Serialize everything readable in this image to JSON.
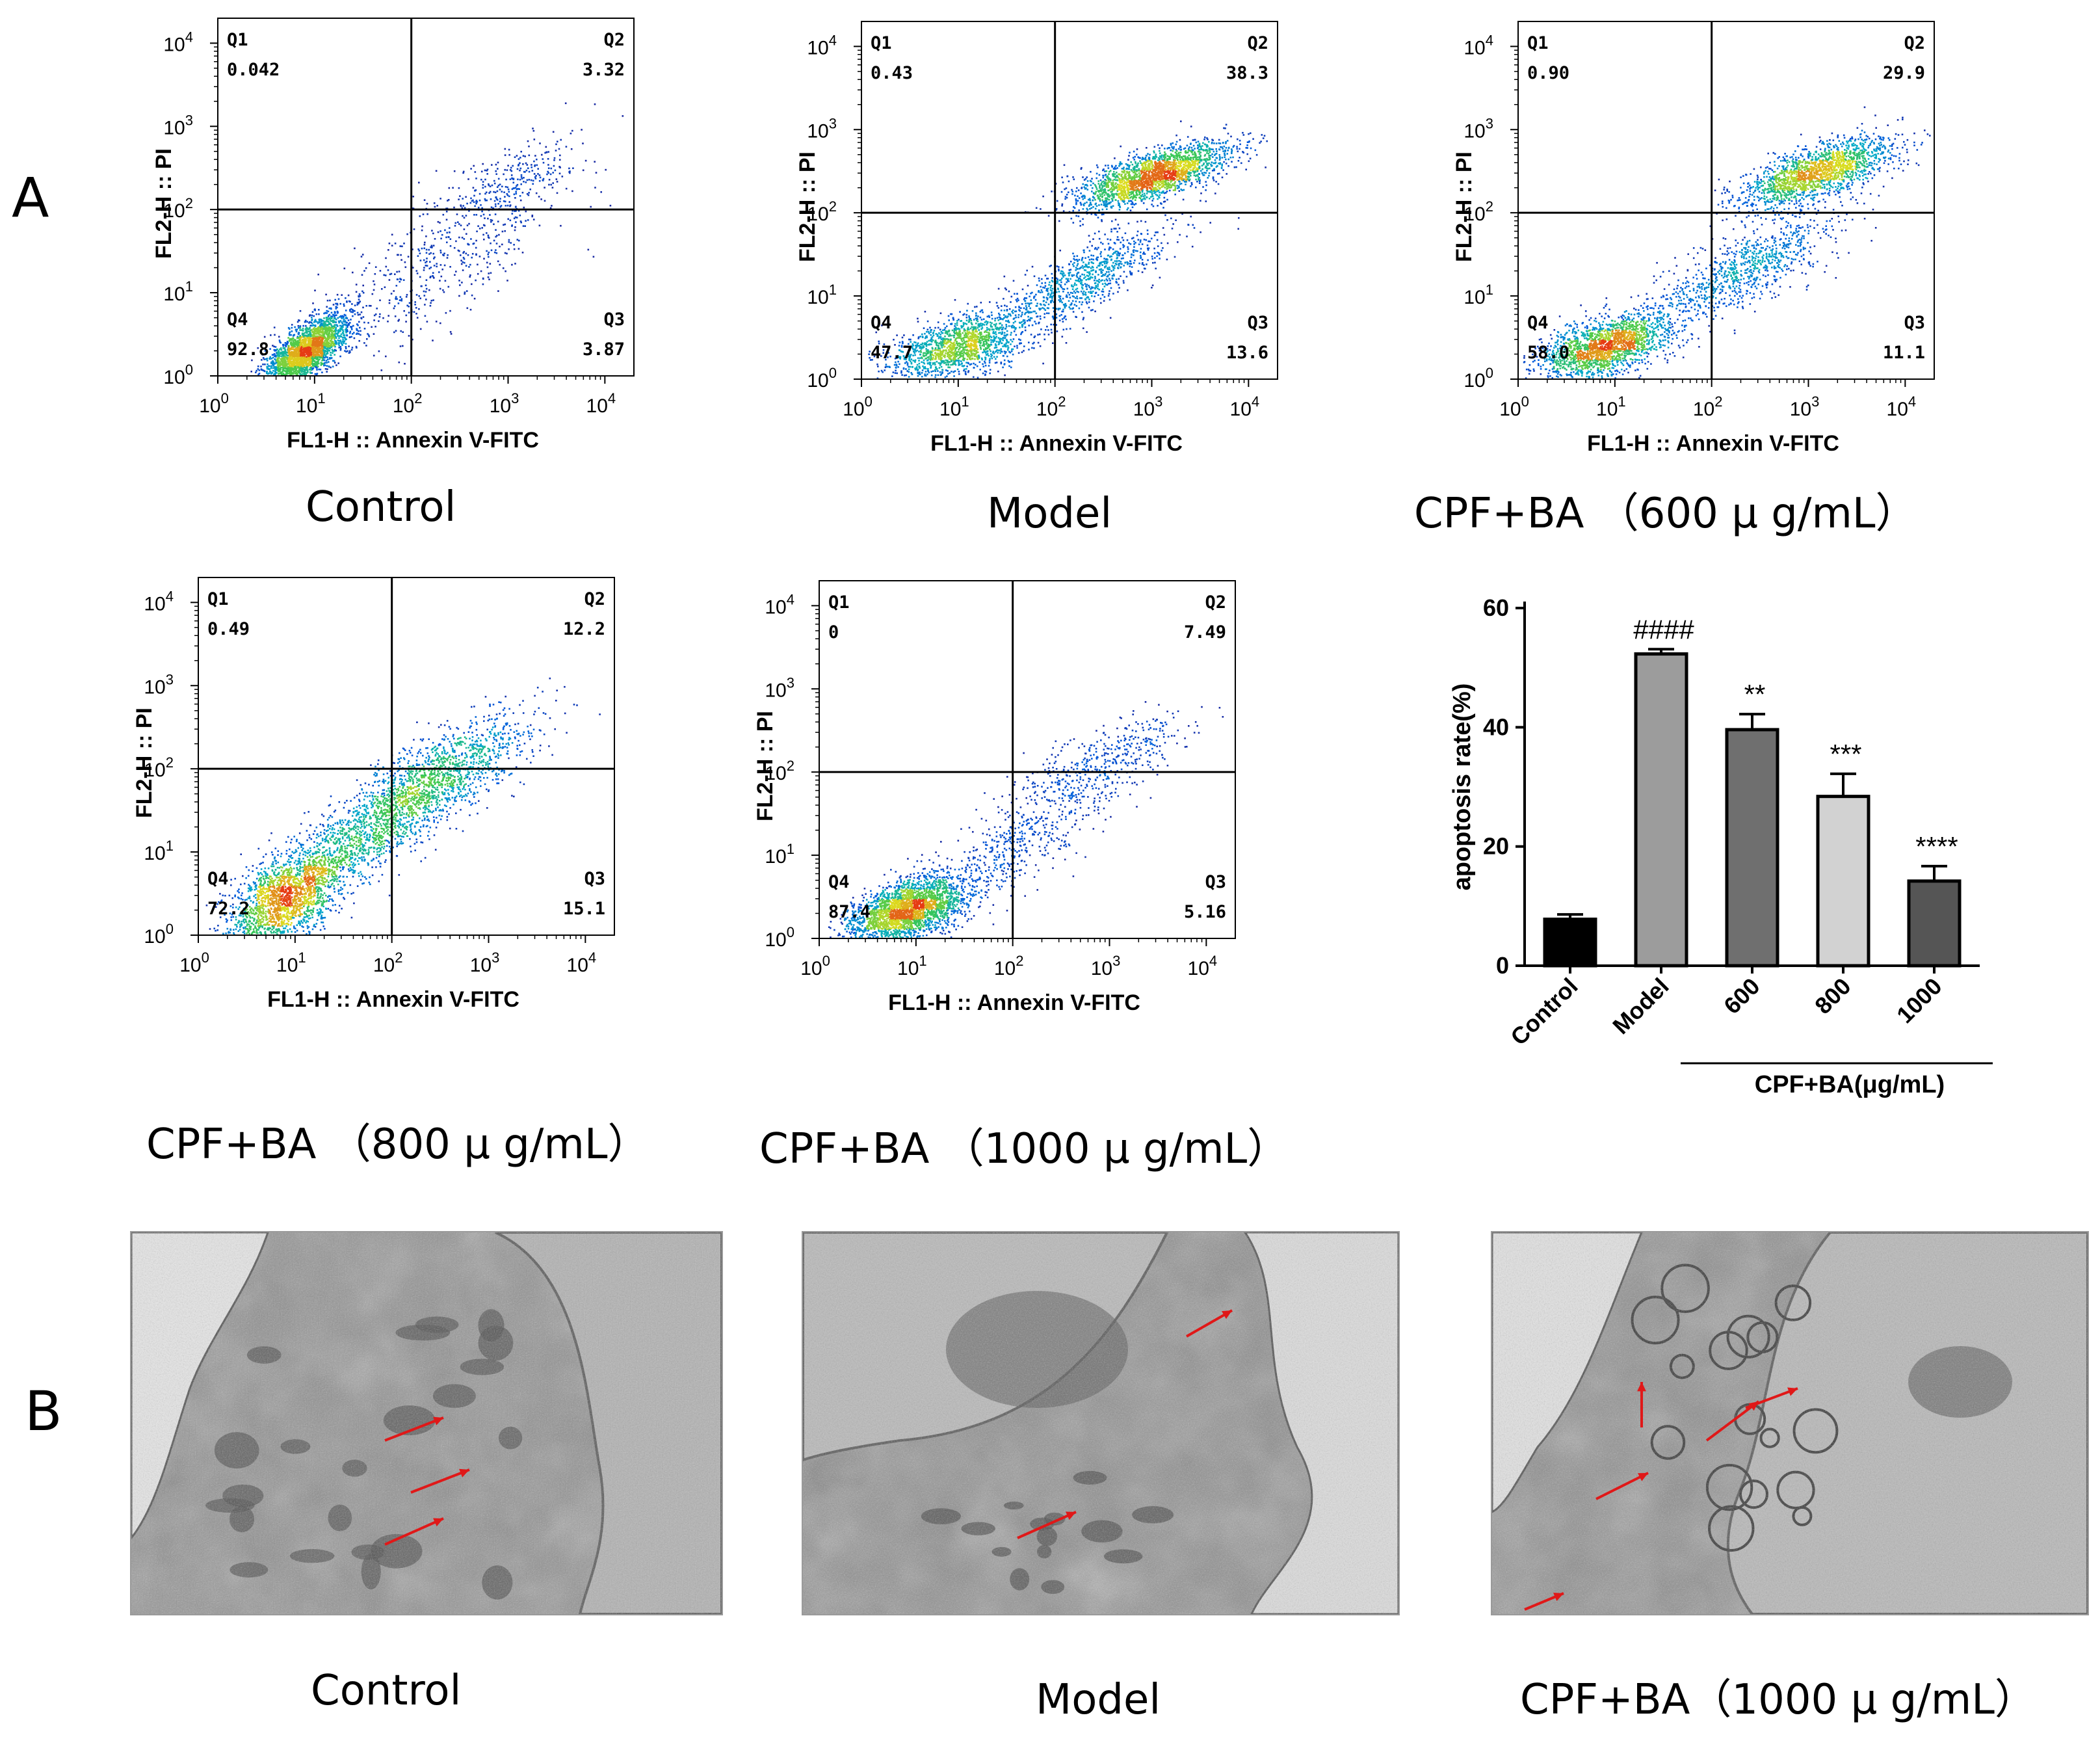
{
  "panel_letters": {
    "a": "A",
    "b": "B"
  },
  "flow": {
    "x_axis_label": "FL1-H :: Annexin V-FITC",
    "y_axis_label": "FL2-H :: PI",
    "tick_exponents": [
      "0",
      "1",
      "2",
      "3",
      "4"
    ],
    "tick_base": "10",
    "quadrant_names": [
      "Q1",
      "Q2",
      "Q3",
      "Q4"
    ],
    "plots": [
      {
        "caption": "Control",
        "Q1": "0.042",
        "Q2": "3.32",
        "Q3": "3.87",
        "Q4": "92.8",
        "profile": "control"
      },
      {
        "caption": "Model",
        "Q1": "0.43",
        "Q2": "38.3",
        "Q3": "13.6",
        "Q4": "47.7",
        "profile": "model"
      },
      {
        "caption": "CPF+BA （600 μ g/mL）",
        "Q1": "0.90",
        "Q2": "29.9",
        "Q3": "11.1",
        "Q4": "58.0",
        "profile": "cpf600"
      },
      {
        "caption": "CPF+BA （800 μ g/mL）",
        "Q1": "0.49",
        "Q2": "12.2",
        "Q3": "15.1",
        "Q4": "72.2",
        "profile": "cpf800"
      },
      {
        "caption": "CPF+BA （1000 μ g/mL）",
        "Q1": "0",
        "Q2": "7.49",
        "Q3": "5.16",
        "Q4": "87.4",
        "profile": "cpf1000"
      }
    ]
  },
  "chart_data": {
    "type": "bar",
    "categories": [
      "Control",
      "Model",
      "600",
      "800",
      "1000"
    ],
    "values": [
      7.8,
      52.3,
      39.6,
      28.4,
      14.2
    ],
    "errors": [
      0.8,
      0.8,
      2.6,
      3.8,
      2.5
    ],
    "annotations": [
      "",
      "####",
      "**",
      "***",
      "****"
    ],
    "bar_colors": [
      "#000000",
      "#9c9c9c",
      "#6f6f6f",
      "#d2d2d2",
      "#555555"
    ],
    "title": "",
    "xlabel": "CPF+BA(μg/mL)",
    "ylabel": "apoptosis rate(%)",
    "ylim": [
      0,
      60
    ],
    "yticks": [
      0,
      20,
      40,
      60
    ],
    "grid": false,
    "legend": "none"
  },
  "tem": {
    "images": [
      {
        "caption": "Control",
        "scene": "control"
      },
      {
        "caption": "Model",
        "scene": "model"
      },
      {
        "caption": "CPF+BA（1000 μ g/mL）",
        "scene": "cpf1000"
      }
    ]
  },
  "colors": {
    "arrow": "#e01818",
    "axis": "#000000"
  }
}
